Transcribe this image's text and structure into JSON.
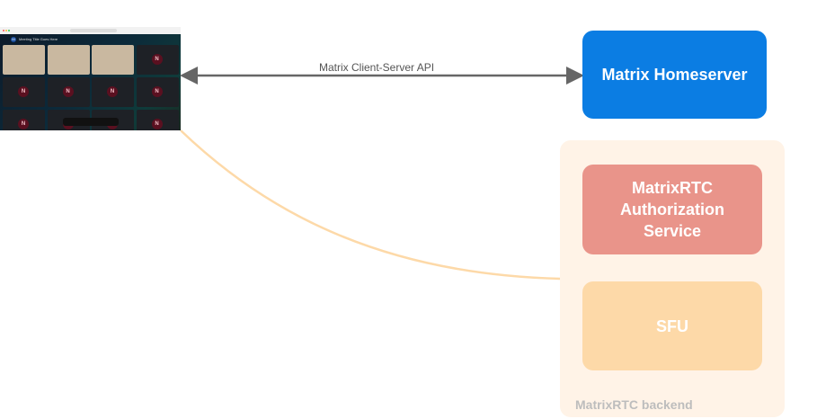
{
  "screenshot": {
    "meeting_title": "Meeting Title Goes Here",
    "avatar_initial": "M",
    "tile_initial": "N"
  },
  "connections": {
    "client_server_api": "Matrix Client-Server API"
  },
  "homeserver": {
    "label": "Matrix Homeserver",
    "color": "#0b7de3"
  },
  "backend": {
    "label": "MatrixRTC backend",
    "color": "#fff3e7",
    "auth": {
      "label": "MatrixRTC Authorization Service",
      "color": "#e9948a"
    },
    "sfu": {
      "label": "SFU",
      "color": "#fdd9a8"
    }
  },
  "colors": {
    "arrow": "#666666",
    "curve": "#fdd9a8"
  }
}
